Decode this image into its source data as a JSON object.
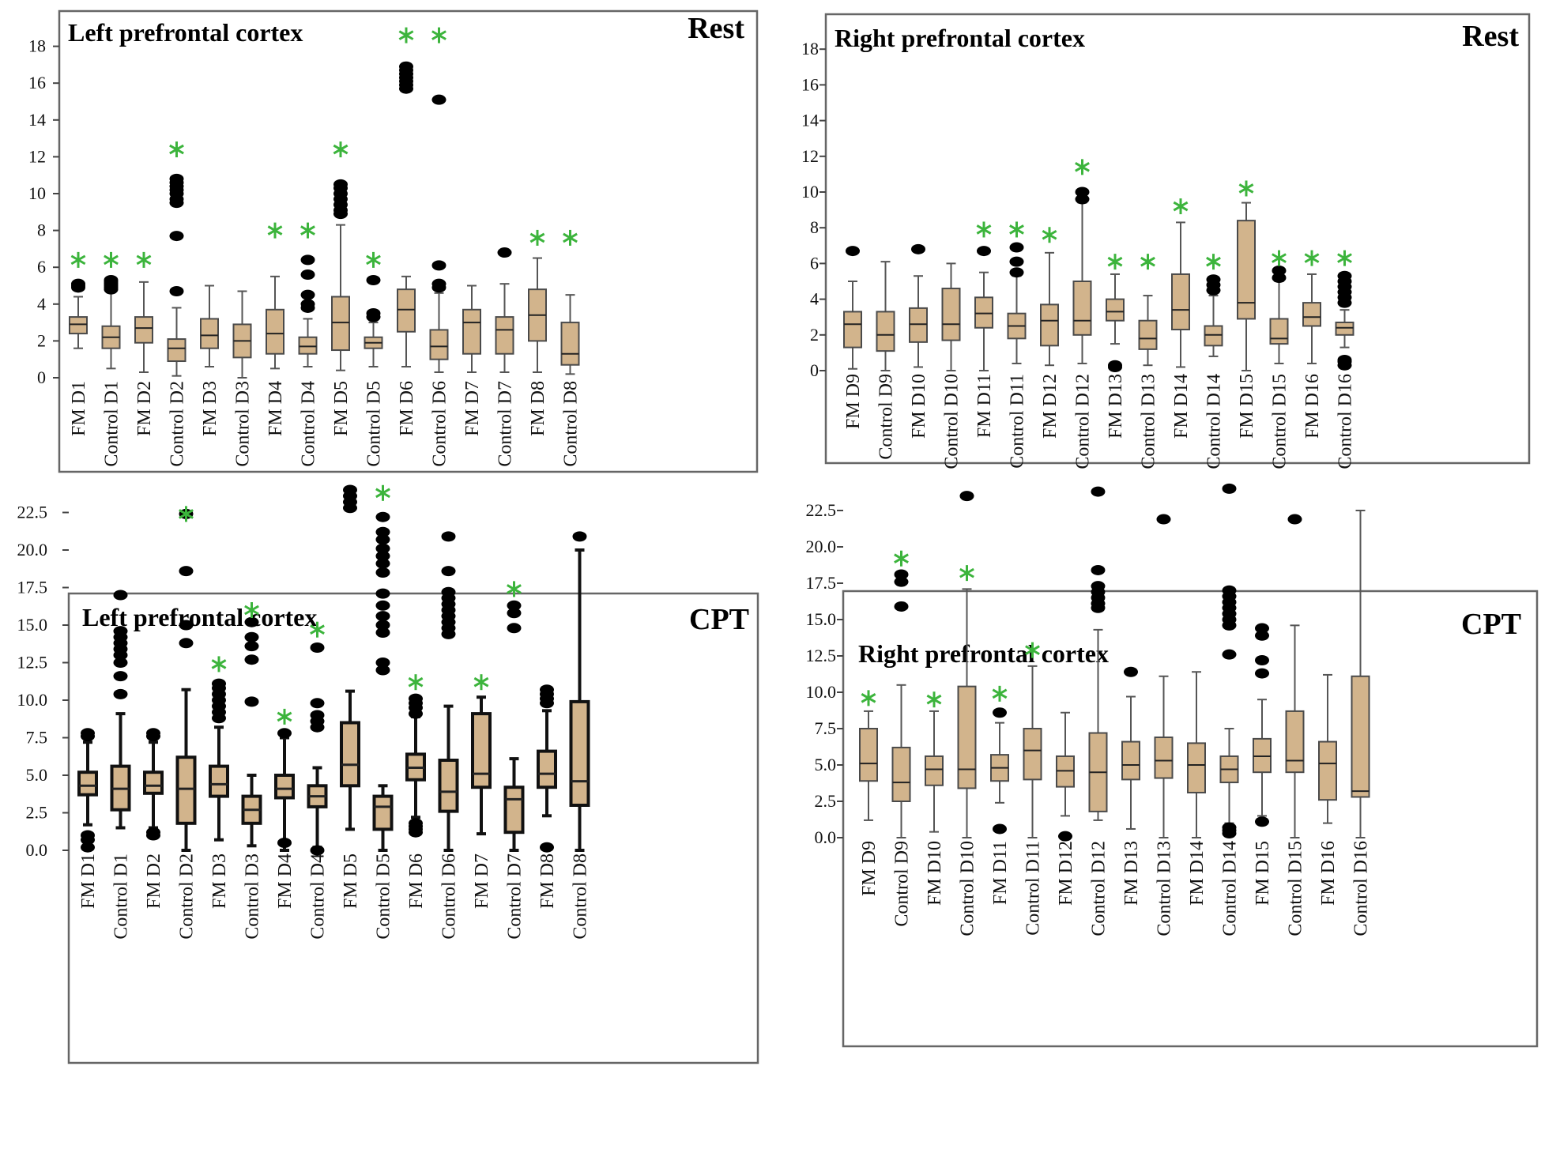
{
  "chart_data": [
    {
      "type": "boxplot",
      "title": "Left prefrontal cortex",
      "condition": "Rest",
      "yticks": [
        "0",
        "2",
        "4",
        "6",
        "8",
        "10",
        "12",
        "14",
        "16",
        "18"
      ],
      "ylim": [
        0,
        19
      ],
      "colors": {
        "box_fill": "#d2b48c",
        "box_stroke": "#4a4a4a",
        "whisker": "#555555",
        "outlier": "#000000",
        "significance": "#3cb43c"
      },
      "categories": [
        "FM D1",
        "Control D1",
        "FM D2",
        "Control D2",
        "FM D3",
        "Control D3",
        "FM D4",
        "Control D4",
        "FM D5",
        "Control D5",
        "FM D6",
        "Control D6",
        "FM D7",
        "Control D7",
        "FM D8",
        "Control D8"
      ],
      "boxes": [
        {
          "lo": 1.6,
          "q1": 2.4,
          "med": 2.9,
          "q3": 3.3,
          "hi": 4.4,
          "out": [
            4.9,
            5.0,
            5.1
          ],
          "sig": 6.4
        },
        {
          "lo": 0.5,
          "q1": 1.6,
          "med": 2.2,
          "q3": 2.8,
          "hi": 4.7,
          "out": [
            4.8,
            4.9,
            5.0,
            5.1,
            5.2,
            5.3
          ],
          "sig": 6.4
        },
        {
          "lo": 0.3,
          "q1": 1.9,
          "med": 2.7,
          "q3": 3.3,
          "hi": 5.2,
          "out": [],
          "sig": 6.4
        },
        {
          "lo": 0.1,
          "q1": 0.9,
          "med": 1.6,
          "q3": 2.1,
          "hi": 3.8,
          "out": [
            4.7,
            7.7,
            9.5,
            9.7,
            10.0,
            10.2,
            10.4,
            10.6,
            10.8
          ],
          "sig": 12.4
        },
        {
          "lo": 0.6,
          "q1": 1.6,
          "med": 2.3,
          "q3": 3.2,
          "hi": 5.0,
          "out": [],
          "sig": null
        },
        {
          "lo": 0.0,
          "q1": 1.1,
          "med": 2.0,
          "q3": 2.9,
          "hi": 4.7,
          "out": [],
          "sig": null
        },
        {
          "lo": 0.5,
          "q1": 1.3,
          "med": 2.4,
          "q3": 3.7,
          "hi": 5.5,
          "out": [],
          "sig": 8.0
        },
        {
          "lo": 0.6,
          "q1": 1.3,
          "med": 1.7,
          "q3": 2.2,
          "hi": 3.2,
          "out": [
            3.8,
            4.0,
            4.5,
            5.6,
            6.4
          ],
          "sig": 8.0
        },
        {
          "lo": 0.4,
          "q1": 1.5,
          "med": 3.0,
          "q3": 4.4,
          "hi": 8.3,
          "out": [
            8.9,
            9.1,
            9.4,
            9.7,
            10.0,
            10.3,
            10.5
          ],
          "sig": 12.4
        },
        {
          "lo": 0.6,
          "q1": 1.6,
          "med": 1.9,
          "q3": 2.2,
          "hi": 3.0,
          "out": [
            3.3,
            3.5,
            5.3
          ],
          "sig": 6.4
        },
        {
          "lo": 0.6,
          "q1": 2.5,
          "med": 3.7,
          "q3": 4.8,
          "hi": 5.5,
          "out": [
            15.7,
            15.9,
            16.1,
            16.3,
            16.5,
            16.7,
            16.9
          ],
          "sig": 18.6
        },
        {
          "lo": 0.3,
          "q1": 1.0,
          "med": 1.7,
          "q3": 2.6,
          "hi": 4.6,
          "out": [
            4.9,
            5.1,
            6.1,
            15.1
          ],
          "sig": 18.6
        },
        {
          "lo": 0.3,
          "q1": 1.3,
          "med": 3.0,
          "q3": 3.7,
          "hi": 5.0,
          "out": [],
          "sig": null
        },
        {
          "lo": 0.3,
          "q1": 1.3,
          "med": 2.6,
          "q3": 3.3,
          "hi": 5.1,
          "out": [
            6.8
          ],
          "sig": null
        },
        {
          "lo": 0.3,
          "q1": 2.0,
          "med": 3.4,
          "q3": 4.8,
          "hi": 6.5,
          "out": [],
          "sig": 7.6
        },
        {
          "lo": 0.2,
          "q1": 0.7,
          "med": 1.3,
          "q3": 3.0,
          "hi": 4.5,
          "out": [],
          "sig": 7.6
        }
      ]
    },
    {
      "type": "boxplot",
      "title": "Right prefrontal cortex",
      "condition": "Rest",
      "yticks": [
        "0",
        "2",
        "4",
        "6",
        "8",
        "10",
        "12",
        "14",
        "16",
        "18"
      ],
      "ylim": [
        0,
        19
      ],
      "categories": [
        "FM D9",
        "Control D9",
        "FM D10",
        "Control D10",
        "FM D11",
        "Control D11",
        "FM D12",
        "Control D12",
        "FM D13",
        "Control D13",
        "FM D14",
        "Control D14",
        "FM D15",
        "Control D15",
        "FM D16",
        "Control D16"
      ],
      "boxes": [
        {
          "lo": 0.1,
          "q1": 1.3,
          "med": 2.6,
          "q3": 3.3,
          "hi": 5.0,
          "out": [
            6.7
          ],
          "sig": null
        },
        {
          "lo": 0.0,
          "q1": 1.1,
          "med": 2.0,
          "q3": 3.3,
          "hi": 6.1,
          "out": [],
          "sig": null
        },
        {
          "lo": 0.2,
          "q1": 1.6,
          "med": 2.6,
          "q3": 3.5,
          "hi": 5.3,
          "out": [
            6.8
          ],
          "sig": null
        },
        {
          "lo": 0.0,
          "q1": 1.7,
          "med": 2.6,
          "q3": 4.6,
          "hi": 6.0,
          "out": [],
          "sig": null
        },
        {
          "lo": 0.0,
          "q1": 2.4,
          "med": 3.2,
          "q3": 4.1,
          "hi": 5.5,
          "out": [
            6.7
          ],
          "sig": 7.9
        },
        {
          "lo": 0.4,
          "q1": 1.8,
          "med": 2.5,
          "q3": 3.2,
          "hi": 5.3,
          "out": [
            5.5,
            6.1,
            6.9
          ],
          "sig": 7.9
        },
        {
          "lo": 0.3,
          "q1": 1.4,
          "med": 2.8,
          "q3": 3.7,
          "hi": 6.6,
          "out": [],
          "sig": 7.6
        },
        {
          "lo": 0.4,
          "q1": 2.0,
          "med": 2.8,
          "q3": 5.0,
          "hi": 9.4,
          "out": [
            9.6,
            10.0
          ],
          "sig": 11.4
        },
        {
          "lo": 1.5,
          "q1": 2.8,
          "med": 3.3,
          "q3": 4.0,
          "hi": 5.4,
          "out": [
            0.2,
            0.3
          ],
          "sig": 6.1
        },
        {
          "lo": 0.3,
          "q1": 1.2,
          "med": 1.8,
          "q3": 2.8,
          "hi": 4.2,
          "out": [],
          "sig": 6.1
        },
        {
          "lo": 0.2,
          "q1": 2.3,
          "med": 3.4,
          "q3": 5.4,
          "hi": 8.3,
          "out": [],
          "sig": 9.2
        },
        {
          "lo": 0.8,
          "q1": 1.4,
          "med": 2.0,
          "q3": 2.5,
          "hi": 4.2,
          "out": [
            4.5,
            4.8,
            5.1
          ],
          "sig": 6.1
        },
        {
          "lo": 0.0,
          "q1": 2.9,
          "med": 3.8,
          "q3": 8.4,
          "hi": 9.4,
          "out": [],
          "sig": 10.2
        },
        {
          "lo": 0.4,
          "q1": 1.5,
          "med": 1.8,
          "q3": 2.9,
          "hi": 5.0,
          "out": [
            5.2,
            5.6
          ],
          "sig": 6.3
        },
        {
          "lo": 0.4,
          "q1": 2.5,
          "med": 3.0,
          "q3": 3.8,
          "hi": 5.4,
          "out": [],
          "sig": 6.3
        },
        {
          "lo": 1.3,
          "q1": 2.0,
          "med": 2.4,
          "q3": 2.7,
          "hi": 3.4,
          "out": [
            0.3,
            0.5,
            0.6,
            3.8,
            4.1,
            4.4,
            4.7,
            5.0,
            5.3
          ],
          "sig": 6.3
        }
      ]
    },
    {
      "type": "boxplot",
      "title": "Left prefrontal cortex",
      "condition": "CPT",
      "yticks": [
        "0.0",
        "2.5",
        "5.0",
        "7.5",
        "10.0",
        "12.5",
        "15.0",
        "17.5",
        "20.0",
        "22.5"
      ],
      "ylim": [
        0,
        24.3
      ],
      "categories": [
        "FM D1",
        "Control D1",
        "FM D2",
        "Control D2",
        "FM D3",
        "Control D3",
        "FM D4",
        "Control D4",
        "FM D5",
        "Control D5",
        "FM D6",
        "Control D6",
        "FM D7",
        "Control D7",
        "FM D8",
        "Control D8"
      ],
      "boxes": [
        {
          "lo": 1.7,
          "q1": 3.7,
          "med": 4.3,
          "q3": 5.2,
          "hi": 7.2,
          "out": [
            0.2,
            0.7,
            1.0,
            7.6,
            7.8
          ],
          "sig": null
        },
        {
          "lo": 1.5,
          "q1": 2.7,
          "med": 4.1,
          "q3": 5.6,
          "hi": 9.1,
          "out": [
            10.4,
            11.6,
            12.5,
            13.0,
            13.4,
            13.8,
            14.2,
            14.6,
            17.0
          ],
          "sig": null
        },
        {
          "lo": 1.5,
          "q1": 3.8,
          "med": 4.3,
          "q3": 5.2,
          "hi": 7.2,
          "out": [
            1.0,
            1.2,
            7.6,
            7.8
          ],
          "sig": null
        },
        {
          "lo": 0.0,
          "q1": 1.8,
          "med": 4.1,
          "q3": 6.2,
          "hi": 10.7,
          "out": [
            13.8,
            15.0,
            18.6,
            22.4
          ],
          "sig": 22.4
        },
        {
          "lo": 0.7,
          "q1": 3.6,
          "med": 4.4,
          "q3": 5.6,
          "hi": 8.2,
          "out": [
            8.8,
            9.2,
            9.6,
            10.0,
            10.4,
            10.8,
            11.1
          ],
          "sig": 12.4
        },
        {
          "lo": 0.3,
          "q1": 1.8,
          "med": 2.7,
          "q3": 3.6,
          "hi": 5.0,
          "out": [
            9.9,
            12.7,
            13.6,
            14.2,
            15.2
          ],
          "sig": 16.0
        },
        {
          "lo": 0.0,
          "q1": 3.5,
          "med": 4.1,
          "q3": 5.0,
          "hi": 7.5,
          "out": [
            0.5,
            7.8
          ],
          "sig": 8.9
        },
        {
          "lo": 0.2,
          "q1": 2.9,
          "med": 3.6,
          "q3": 4.3,
          "hi": 5.5,
          "out": [
            0.0,
            8.2,
            8.6,
            9.0,
            9.8,
            13.5
          ],
          "sig": 14.7
        },
        {
          "lo": 1.4,
          "q1": 4.3,
          "med": 5.7,
          "q3": 8.5,
          "hi": 10.6,
          "out": [
            22.8,
            23.2,
            23.6,
            24.0
          ],
          "sig": null
        },
        {
          "lo": 0.0,
          "q1": 1.4,
          "med": 2.9,
          "q3": 3.6,
          "hi": 4.3,
          "out": [
            12.0,
            12.5,
            14.5,
            15.0,
            15.6,
            16.3,
            17.1,
            18.5,
            19.1,
            19.6,
            20.1,
            20.7,
            21.2,
            22.2
          ],
          "sig": 23.8
        },
        {
          "lo": 2.2,
          "q1": 4.7,
          "med": 5.5,
          "q3": 6.4,
          "hi": 8.9,
          "out": [
            1.2,
            1.4,
            1.6,
            1.8,
            9.1,
            9.5,
            9.8,
            10.1
          ],
          "sig": 11.2
        },
        {
          "lo": 0.0,
          "q1": 2.6,
          "med": 3.9,
          "q3": 6.0,
          "hi": 9.6,
          "out": [
            14.4,
            14.8,
            15.2,
            15.6,
            16.0,
            16.4,
            16.8,
            17.2,
            18.6,
            20.9
          ],
          "sig": null
        },
        {
          "lo": 1.1,
          "q1": 4.2,
          "med": 5.1,
          "q3": 9.1,
          "hi": 10.2,
          "out": [],
          "sig": 11.2
        },
        {
          "lo": 0.0,
          "q1": 1.2,
          "med": 3.4,
          "q3": 4.2,
          "hi": 6.1,
          "out": [
            14.8,
            15.8,
            16.3
          ],
          "sig": 17.4
        },
        {
          "lo": 2.3,
          "q1": 4.2,
          "med": 5.1,
          "q3": 6.6,
          "hi": 9.3,
          "out": [
            0.2,
            9.8,
            10.1,
            10.4,
            10.7
          ],
          "sig": null
        },
        {
          "lo": 0.0,
          "q1": 3.0,
          "med": 4.6,
          "q3": 9.9,
          "hi": 20.0,
          "out": [
            20.9
          ],
          "sig": null
        }
      ]
    },
    {
      "type": "boxplot",
      "title": "Right prefrontal cortex",
      "condition": "CPT",
      "yticks": [
        "0.0",
        "2.5",
        "5.0",
        "7.5",
        "10.0",
        "12.5",
        "15.0",
        "17.5",
        "20.0",
        "22.5"
      ],
      "ylim": [
        0,
        24.4
      ],
      "categories": [
        "FM D9",
        "Control D9",
        "FM D10",
        "Control D10",
        "FM D11",
        "Control D11",
        "FM D12",
        "Control D12",
        "FM D13",
        "Control D13",
        "FM D14",
        "Control D14",
        "FM D15",
        "Control D15",
        "FM D16",
        "Control D16"
      ],
      "boxes": [
        {
          "lo": 1.2,
          "q1": 3.9,
          "med": 5.1,
          "q3": 7.5,
          "hi": 8.7,
          "out": [],
          "sig": 9.6
        },
        {
          "lo": 0.0,
          "q1": 2.5,
          "med": 3.8,
          "q3": 6.2,
          "hi": 10.5,
          "out": [
            15.9,
            17.6,
            18.1
          ],
          "sig": 19.2
        },
        {
          "lo": 0.4,
          "q1": 3.6,
          "med": 4.7,
          "q3": 5.6,
          "hi": 8.7,
          "out": [],
          "sig": 9.5
        },
        {
          "lo": 0.0,
          "q1": 3.4,
          "med": 4.7,
          "q3": 10.4,
          "hi": 17.1,
          "out": [
            23.5
          ],
          "sig": 18.2
        },
        {
          "lo": 2.4,
          "q1": 3.9,
          "med": 4.8,
          "q3": 5.7,
          "hi": 7.9,
          "out": [
            0.6,
            8.6
          ],
          "sig": 9.9
        },
        {
          "lo": 0.0,
          "q1": 4.0,
          "med": 6.0,
          "q3": 7.5,
          "hi": 11.8,
          "out": [],
          "sig": 12.9
        },
        {
          "lo": 1.5,
          "q1": 3.5,
          "med": 4.6,
          "q3": 5.6,
          "hi": 8.6,
          "out": [
            0.1
          ],
          "sig": null
        },
        {
          "lo": 1.2,
          "q1": 1.8,
          "med": 4.5,
          "q3": 7.2,
          "hi": 14.3,
          "out": [
            15.8,
            16.1,
            16.5,
            16.9,
            17.3,
            18.4,
            23.8
          ],
          "sig": null
        },
        {
          "lo": 0.6,
          "q1": 4.0,
          "med": 5.0,
          "q3": 6.6,
          "hi": 9.7,
          "out": [
            11.4
          ],
          "sig": null
        },
        {
          "lo": 0.0,
          "q1": 4.1,
          "med": 5.3,
          "q3": 6.9,
          "hi": 11.1,
          "out": [
            21.9
          ],
          "sig": null
        },
        {
          "lo": 0.0,
          "q1": 3.1,
          "med": 5.0,
          "q3": 6.5,
          "hi": 11.4,
          "out": [],
          "sig": null
        },
        {
          "lo": 1.0,
          "q1": 3.8,
          "med": 4.7,
          "q3": 5.6,
          "hi": 7.5,
          "out": [
            0.3,
            0.5,
            0.7,
            12.6,
            14.6,
            15.0,
            15.4,
            15.8,
            16.2,
            16.6,
            17.0,
            24.0
          ],
          "sig": null
        },
        {
          "lo": 1.5,
          "q1": 4.5,
          "med": 5.6,
          "q3": 6.8,
          "hi": 9.5,
          "out": [
            1.1,
            11.3,
            12.2,
            13.9,
            14.4
          ],
          "sig": null
        },
        {
          "lo": 0.0,
          "q1": 4.5,
          "med": 5.3,
          "q3": 8.7,
          "hi": 14.6,
          "out": [
            21.9
          ],
          "sig": null
        },
        {
          "lo": 1.0,
          "q1": 2.6,
          "med": 5.1,
          "q3": 6.6,
          "hi": 11.2,
          "out": [],
          "sig": null
        },
        {
          "lo": 0.0,
          "q1": 2.8,
          "med": 3.2,
          "q3": 11.1,
          "hi": 22.5,
          "out": [],
          "sig": null
        }
      ]
    }
  ]
}
